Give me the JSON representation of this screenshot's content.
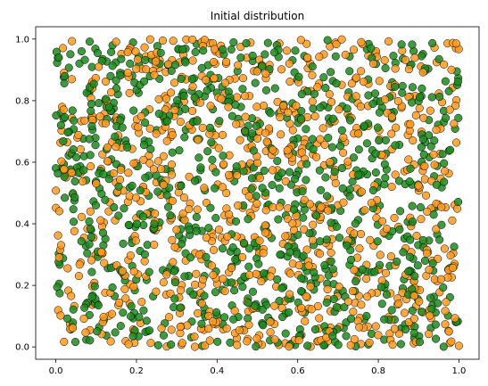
{
  "chart_data": {
    "type": "scatter",
    "title": "Initial distribution",
    "xlabel": "",
    "ylabel": "",
    "xlim": [
      -0.05,
      1.05
    ],
    "ylim": [
      -0.04,
      1.04
    ],
    "x_ticks": [
      0.0,
      0.2,
      0.4,
      0.6,
      0.8,
      1.0
    ],
    "y_ticks": [
      0.0,
      0.2,
      0.4,
      0.6,
      0.8,
      1.0
    ],
    "x_tick_labels": [
      "0.0",
      "0.2",
      "0.4",
      "0.6",
      "0.8",
      "1.0"
    ],
    "y_tick_labels": [
      "0.0",
      "0.2",
      "0.4",
      "0.6",
      "0.8",
      "1.0"
    ],
    "grid": false,
    "legend": false,
    "series": [
      {
        "color": "#ff9a1f",
        "edge_color": "#000000",
        "count": 900,
        "distribution": "uniform over [0,1] x [0,1]"
      },
      {
        "color": "#1f8a1f",
        "edge_color": "#000000",
        "count": 900,
        "distribution": "uniform over [0,1] x [0,1]"
      }
    ]
  }
}
